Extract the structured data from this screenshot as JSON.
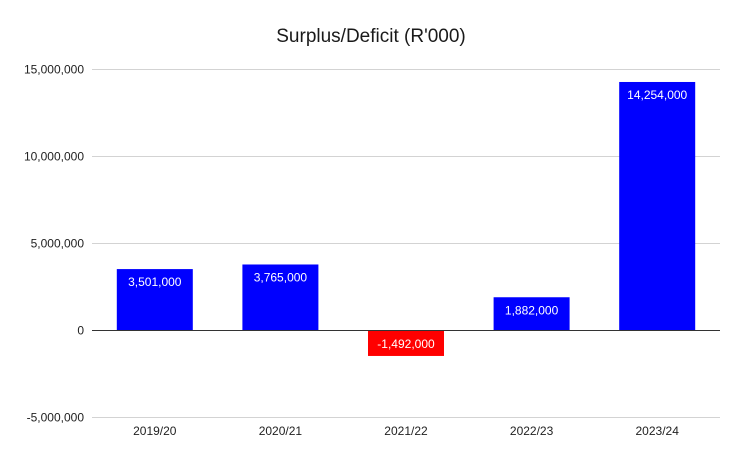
{
  "chart_data": {
    "type": "bar",
    "title": "Surplus/Deficit (R'000)",
    "xlabel": "",
    "ylabel": "",
    "categories": [
      "2019/20",
      "2020/21",
      "2021/22",
      "2022/23",
      "2023/24"
    ],
    "values": [
      3501000,
      3765000,
      -1492000,
      1882000,
      14254000
    ],
    "data_labels": [
      "3,501,000",
      "3,765,000",
      "-1,492,000",
      "1,882,000",
      "14,254,000"
    ],
    "ylim": [
      -5000000,
      15000000
    ],
    "yticks": [
      -5000000,
      0,
      5000000,
      10000000,
      15000000
    ],
    "ytick_labels": [
      "-5,000,000",
      "0",
      "5,000,000",
      "10,000,000",
      "15,000,000"
    ],
    "grid": true,
    "legend": "none",
    "colors": {
      "positive": "#0000ff",
      "negative": "#ff0000"
    }
  }
}
